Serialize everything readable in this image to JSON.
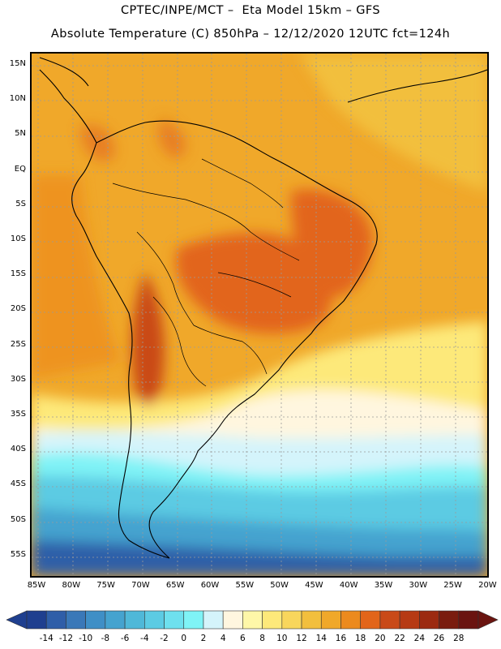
{
  "title_line1": "CPTEC/INPE/MCT –  Eta Model 15km – GFS",
  "title_line2": "Absolute Temperature (C) 850hPa – 12/12/2020 12UTC fct=124h",
  "lat_labels": [
    "15N",
    "10N",
    "5N",
    "EQ",
    "5S",
    "10S",
    "15S",
    "20S",
    "25S",
    "30S",
    "35S",
    "40S",
    "45S",
    "50S",
    "55S"
  ],
  "lon_labels": [
    "85W",
    "80W",
    "75W",
    "70W",
    "65W",
    "60W",
    "55W",
    "50W",
    "45W",
    "40W",
    "35W",
    "30W",
    "25W",
    "20W"
  ],
  "colorbar": {
    "labels": [
      "-14",
      "-12",
      "-10",
      "-8",
      "-6",
      "-4",
      "-2",
      "0",
      "2",
      "4",
      "6",
      "8",
      "10",
      "12",
      "14",
      "16",
      "18",
      "20",
      "22",
      "24",
      "26",
      "28"
    ],
    "colors": [
      "#1f3f8f",
      "#2f5ea8",
      "#3a78b8",
      "#3f8fc6",
      "#45a3cf",
      "#4fb8d8",
      "#5ccbe3",
      "#6ee0ee",
      "#7ff3f6",
      "#d4f4fb",
      "#fff6df",
      "#fef7a8",
      "#fde97a",
      "#f8d65c",
      "#f2bf3d",
      "#f0a82a",
      "#ec8a1e",
      "#e2651a",
      "#c94a18",
      "#b63a14",
      "#9c2a10",
      "#7a1c0e",
      "#6a1410"
    ]
  },
  "icons": {
    "colorbar_left_arrow": "triangle-left-icon",
    "colorbar_right_arrow": "triangle-right-icon"
  }
}
